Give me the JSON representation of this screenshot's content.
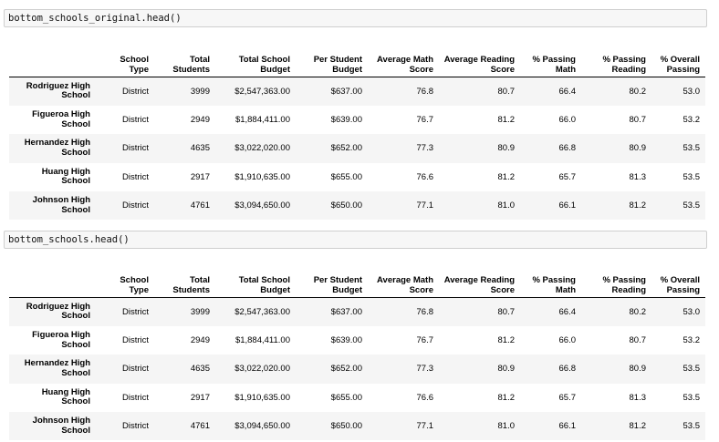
{
  "cells": [
    {
      "code": "bottom_schools_original.head()",
      "columns": [
        "",
        "School\nType",
        "Total\nStudents",
        "Total School\nBudget",
        "Per Student\nBudget",
        "Average Math\nScore",
        "Average Reading\nScore",
        "% Passing\nMath",
        "% Passing\nReading",
        "% Overall\nPassing"
      ],
      "rows": [
        {
          "name": "Rodriguez High\nSchool",
          "values": [
            "District",
            "3999",
            "$2,547,363.00",
            "$637.00",
            "76.8",
            "80.7",
            "66.4",
            "80.2",
            "53.0"
          ]
        },
        {
          "name": "Figueroa High\nSchool",
          "values": [
            "District",
            "2949",
            "$1,884,411.00",
            "$639.00",
            "76.7",
            "81.2",
            "66.0",
            "80.7",
            "53.2"
          ]
        },
        {
          "name": "Hernandez High\nSchool",
          "values": [
            "District",
            "4635",
            "$3,022,020.00",
            "$652.00",
            "77.3",
            "80.9",
            "66.8",
            "80.9",
            "53.5"
          ]
        },
        {
          "name": "Huang High\nSchool",
          "values": [
            "District",
            "2917",
            "$1,910,635.00",
            "$655.00",
            "76.6",
            "81.2",
            "65.7",
            "81.3",
            "53.5"
          ]
        },
        {
          "name": "Johnson High\nSchool",
          "values": [
            "District",
            "4761",
            "$3,094,650.00",
            "$650.00",
            "77.1",
            "81.0",
            "66.1",
            "81.2",
            "53.5"
          ]
        }
      ]
    },
    {
      "code": "bottom_schools.head()",
      "columns": [
        "",
        "School\nType",
        "Total\nStudents",
        "Total School\nBudget",
        "Per Student\nBudget",
        "Average Math\nScore",
        "Average Reading\nScore",
        "% Passing\nMath",
        "% Passing\nReading",
        "% Overall\nPassing"
      ],
      "rows": [
        {
          "name": "Rodriguez High\nSchool",
          "values": [
            "District",
            "3999",
            "$2,547,363.00",
            "$637.00",
            "76.8",
            "80.7",
            "66.4",
            "80.2",
            "53.0"
          ]
        },
        {
          "name": "Figueroa High\nSchool",
          "values": [
            "District",
            "2949",
            "$1,884,411.00",
            "$639.00",
            "76.7",
            "81.2",
            "66.0",
            "80.7",
            "53.2"
          ]
        },
        {
          "name": "Hernandez High\nSchool",
          "values": [
            "District",
            "4635",
            "$3,022,020.00",
            "$652.00",
            "77.3",
            "80.9",
            "66.8",
            "80.9",
            "53.5"
          ]
        },
        {
          "name": "Huang High\nSchool",
          "values": [
            "District",
            "2917",
            "$1,910,635.00",
            "$655.00",
            "76.6",
            "81.2",
            "65.7",
            "81.3",
            "53.5"
          ]
        },
        {
          "name": "Johnson High\nSchool",
          "values": [
            "District",
            "4761",
            "$3,094,650.00",
            "$650.00",
            "77.1",
            "81.0",
            "66.1",
            "81.2",
            "53.5"
          ]
        }
      ]
    }
  ]
}
